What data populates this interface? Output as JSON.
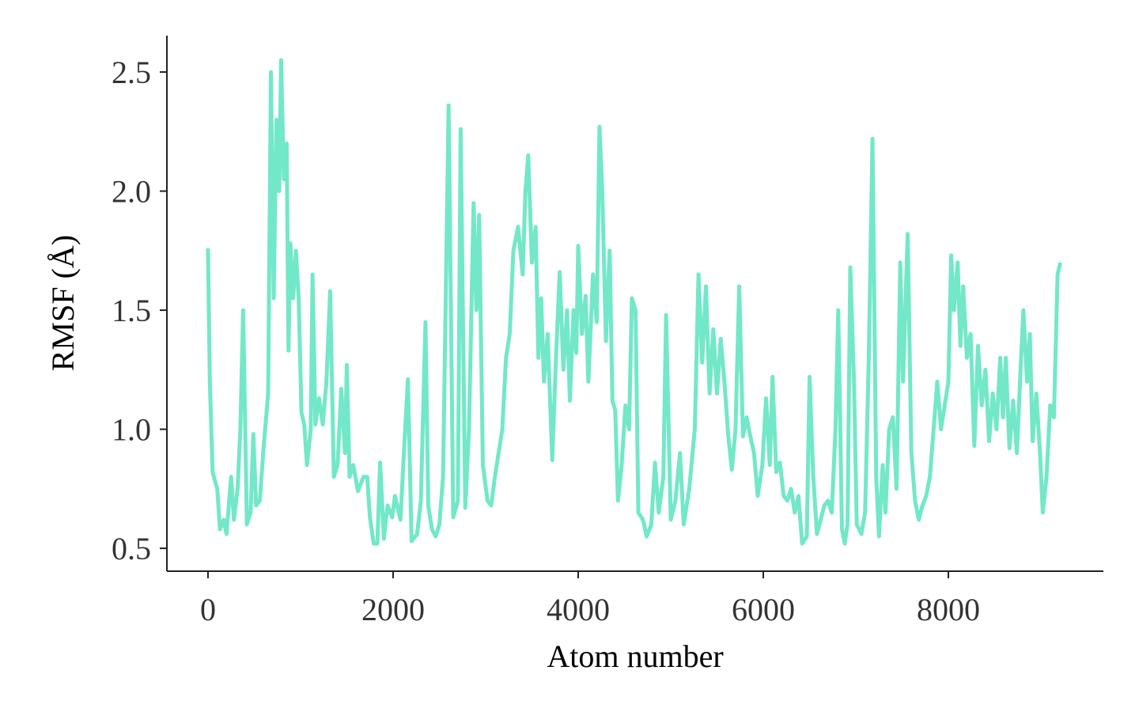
{
  "chart_data": {
    "type": "line",
    "xlabel": "Atom number",
    "ylabel": "RMSF (Å)",
    "color": "#72e8c8",
    "xlim": [
      -444,
      9675
    ],
    "ylim": [
      0.404,
      2.653
    ],
    "xticks": [
      0,
      2000,
      4000,
      6000,
      8000
    ],
    "yticks": [
      0.5,
      {
        "value": 1.0,
        "label": "1.0"
      },
      1.5,
      {
        "value": 2.0,
        "label": "2.0"
      },
      2.5
    ],
    "x": [
      0,
      20,
      50,
      100,
      130,
      170,
      200,
      250,
      280,
      320,
      350,
      380,
      420,
      460,
      490,
      520,
      560,
      600,
      650,
      680,
      710,
      740,
      770,
      790,
      820,
      850,
      870,
      890,
      920,
      950,
      980,
      1010,
      1040,
      1070,
      1110,
      1130,
      1160,
      1200,
      1240,
      1280,
      1320,
      1360,
      1400,
      1440,
      1480,
      1500,
      1530,
      1570,
      1620,
      1680,
      1720,
      1750,
      1790,
      1830,
      1860,
      1900,
      1940,
      1990,
      2020,
      2080,
      2110,
      2160,
      2200,
      2260,
      2300,
      2350,
      2380,
      2420,
      2460,
      2500,
      2540,
      2600,
      2650,
      2700,
      2730,
      2780,
      2820,
      2870,
      2900,
      2930,
      2970,
      3020,
      3060,
      3100,
      3140,
      3180,
      3220,
      3260,
      3300,
      3350,
      3400,
      3430,
      3460,
      3500,
      3540,
      3570,
      3600,
      3630,
      3670,
      3720,
      3760,
      3800,
      3840,
      3880,
      3910,
      3950,
      3980,
      4000,
      4040,
      4080,
      4110,
      4160,
      4200,
      4230,
      4260,
      4300,
      4340,
      4370,
      4400,
      4430,
      4470,
      4510,
      4550,
      4580,
      4620,
      4650,
      4700,
      4740,
      4790,
      4830,
      4870,
      4920,
      4950,
      5000,
      5050,
      5100,
      5140,
      5200,
      5260,
      5300,
      5340,
      5380,
      5420,
      5460,
      5500,
      5540,
      5580,
      5620,
      5660,
      5700,
      5740,
      5780,
      5820,
      5860,
      5900,
      5940,
      5990,
      6030,
      6070,
      6100,
      6140,
      6180,
      6220,
      6260,
      6300,
      6340,
      6380,
      6420,
      6470,
      6500,
      6540,
      6580,
      6620,
      6660,
      6700,
      6740,
      6780,
      6810,
      6850,
      6880,
      6910,
      6940,
      6980,
      7010,
      7060,
      7100,
      7140,
      7180,
      7220,
      7250,
      7290,
      7320,
      7360,
      7400,
      7440,
      7480,
      7510,
      7560,
      7600,
      7640,
      7680,
      7720,
      7760,
      7800,
      7850,
      7880,
      7920,
      7960,
      8000,
      8030,
      8060,
      8100,
      8130,
      8160,
      8200,
      8240,
      8280,
      8320,
      8360,
      8400,
      8440,
      8480,
      8520,
      8560,
      8590,
      8620,
      8660,
      8700,
      8740,
      8780,
      8810,
      8850,
      8880,
      8910,
      8950,
      8990,
      9020,
      9060,
      9100,
      9140,
      9180,
      9210
    ],
    "values": [
      1.76,
      1.2,
      0.82,
      0.75,
      0.58,
      0.62,
      0.56,
      0.8,
      0.62,
      0.75,
      1.0,
      1.5,
      0.6,
      0.65,
      0.98,
      0.68,
      0.7,
      0.92,
      1.15,
      2.5,
      1.55,
      2.3,
      2.0,
      2.55,
      2.05,
      2.2,
      1.33,
      1.78,
      1.55,
      1.75,
      1.55,
      1.07,
      1.02,
      0.85,
      1.0,
      1.65,
      1.02,
      1.13,
      1.02,
      1.2,
      1.58,
      0.8,
      0.85,
      1.17,
      0.9,
      1.27,
      0.8,
      0.85,
      0.74,
      0.8,
      0.8,
      0.63,
      0.52,
      0.52,
      0.86,
      0.54,
      0.68,
      0.63,
      0.72,
      0.62,
      0.85,
      1.21,
      0.53,
      0.56,
      0.7,
      1.45,
      0.68,
      0.58,
      0.55,
      0.6,
      0.8,
      2.36,
      0.63,
      0.7,
      2.26,
      0.67,
      1.0,
      1.95,
      1.5,
      1.9,
      0.85,
      0.7,
      0.68,
      0.8,
      0.9,
      1.0,
      1.3,
      1.4,
      1.75,
      1.85,
      1.65,
      2.0,
      2.15,
      1.7,
      1.85,
      1.3,
      1.55,
      1.2,
      1.4,
      0.87,
      1.3,
      1.66,
      1.25,
      1.5,
      1.12,
      1.5,
      1.32,
      1.77,
      1.4,
      1.56,
      1.2,
      1.65,
      1.45,
      2.27,
      2.0,
      1.37,
      1.75,
      1.12,
      1.08,
      0.7,
      0.85,
      1.1,
      1.0,
      1.55,
      1.5,
      0.65,
      0.62,
      0.55,
      0.6,
      0.86,
      0.65,
      0.8,
      1.48,
      0.62,
      0.7,
      0.9,
      0.6,
      0.75,
      1.0,
      1.65,
      1.28,
      1.6,
      1.15,
      1.42,
      1.15,
      1.38,
      1.2,
      0.98,
      0.83,
      1.0,
      1.6,
      0.97,
      1.05,
      0.97,
      0.9,
      0.72,
      0.85,
      1.13,
      0.85,
      1.22,
      0.82,
      0.86,
      0.72,
      0.7,
      0.75,
      0.65,
      0.72,
      0.52,
      0.55,
      1.22,
      0.8,
      0.56,
      0.62,
      0.68,
      0.7,
      0.65,
      1.0,
      1.5,
      0.58,
      0.52,
      0.6,
      1.68,
      1.2,
      0.6,
      0.56,
      0.65,
      1.3,
      2.22,
      0.8,
      0.55,
      0.85,
      0.65,
      1.0,
      1.05,
      0.75,
      1.7,
      1.2,
      1.82,
      0.9,
      0.7,
      0.62,
      0.68,
      0.72,
      0.8,
      1.05,
      1.2,
      1.0,
      1.1,
      1.2,
      1.73,
      1.5,
      1.7,
      1.35,
      1.6,
      1.3,
      1.4,
      0.93,
      1.35,
      1.1,
      1.25,
      0.95,
      1.15,
      1.0,
      1.3,
      1.05,
      1.3,
      0.92,
      1.12,
      0.9,
      1.25,
      1.5,
      1.2,
      1.4,
      0.95,
      1.15,
      0.9,
      0.65,
      0.8,
      1.1,
      1.05,
      1.65,
      1.7
    ]
  }
}
